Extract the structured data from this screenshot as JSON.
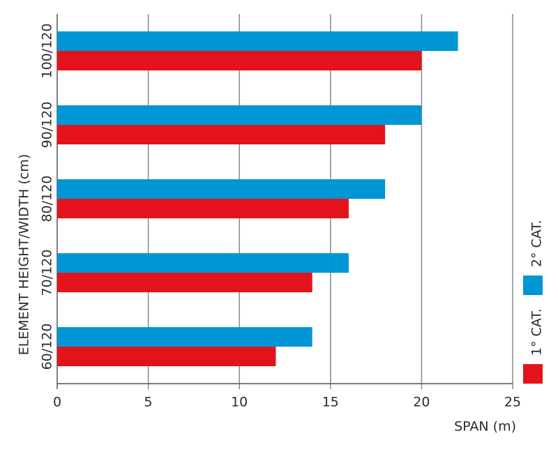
{
  "chart_data": {
    "type": "bar",
    "orientation": "horizontal",
    "categories": [
      "100/120",
      "90/120",
      "80/120",
      "70/120",
      "60/120"
    ],
    "series": [
      {
        "name": "2° CAT.",
        "color": "#0096d6",
        "values": [
          22,
          20,
          18,
          16,
          14
        ]
      },
      {
        "name": "1° CAT.",
        "color": "#e3131b",
        "values": [
          20,
          18,
          16,
          14,
          12
        ]
      }
    ],
    "x_label": "SPAN (m)",
    "y_label": "ELEMENT HEIGHT/WIDTH (cm)",
    "xlim": [
      0,
      25
    ],
    "xticks": [
      0,
      5,
      10,
      15,
      20,
      25
    ],
    "grid": true,
    "legend": "right"
  }
}
